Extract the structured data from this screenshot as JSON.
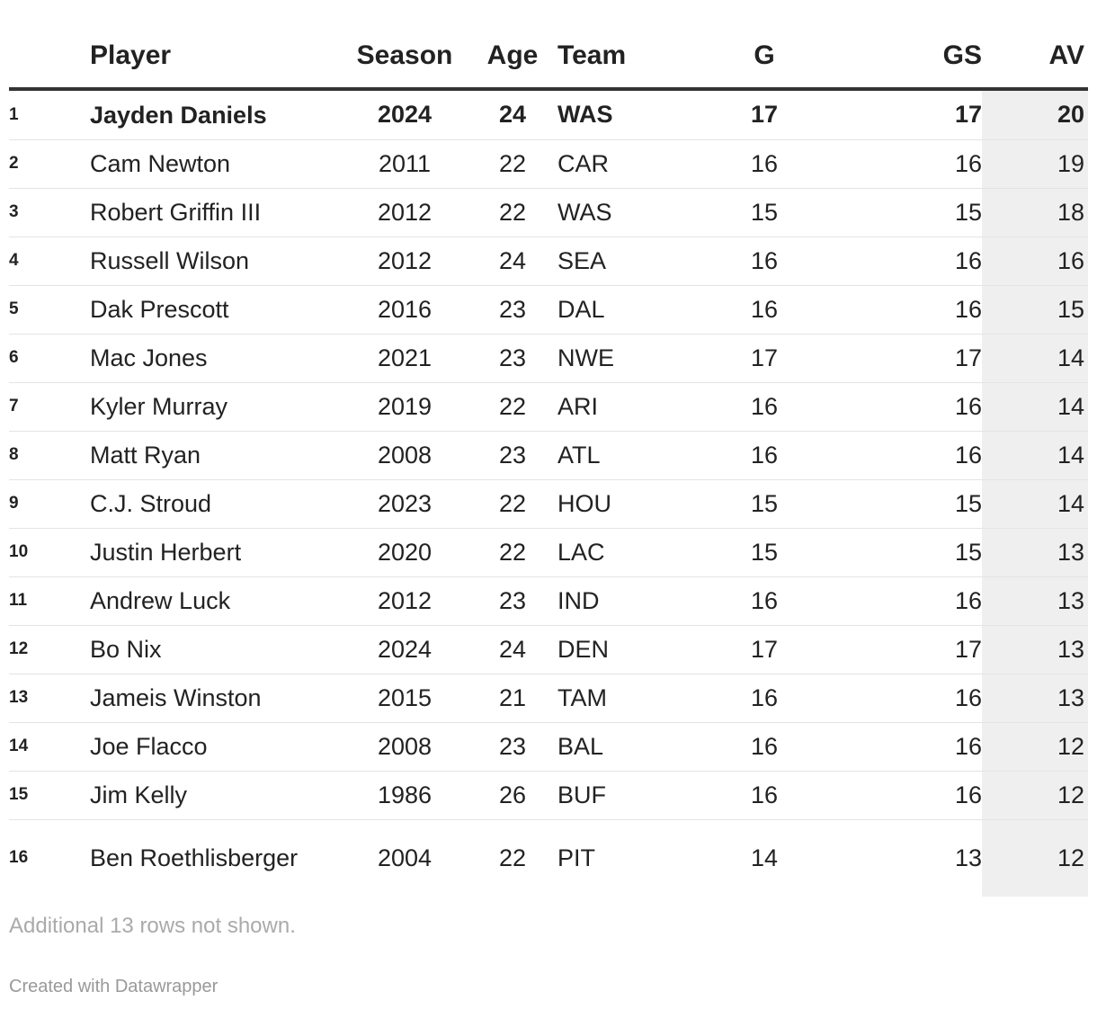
{
  "chart_data": {
    "type": "table",
    "columns": [
      "",
      "Player",
      "Season",
      "Age",
      "Team",
      "G",
      "GS",
      "AV"
    ],
    "rows": [
      [
        "1",
        "Jayden Daniels",
        "2024",
        "24",
        "WAS",
        "17",
        "17",
        "20"
      ],
      [
        "2",
        "Cam Newton",
        "2011",
        "22",
        "CAR",
        "16",
        "16",
        "19"
      ],
      [
        "3",
        "Robert Griffin III",
        "2012",
        "22",
        "WAS",
        "15",
        "15",
        "18"
      ],
      [
        "4",
        "Russell Wilson",
        "2012",
        "24",
        "SEA",
        "16",
        "16",
        "16"
      ],
      [
        "5",
        "Dak Prescott",
        "2016",
        "23",
        "DAL",
        "16",
        "16",
        "15"
      ],
      [
        "6",
        "Mac Jones",
        "2021",
        "23",
        "NWE",
        "17",
        "17",
        "14"
      ],
      [
        "7",
        "Kyler Murray",
        "2019",
        "22",
        "ARI",
        "16",
        "16",
        "14"
      ],
      [
        "8",
        "Matt Ryan",
        "2008",
        "23",
        "ATL",
        "16",
        "16",
        "14"
      ],
      [
        "9",
        "C.J. Stroud",
        "2023",
        "22",
        "HOU",
        "15",
        "15",
        "14"
      ],
      [
        "10",
        "Justin Herbert",
        "2020",
        "22",
        "LAC",
        "15",
        "15",
        "13"
      ],
      [
        "11",
        "Andrew Luck",
        "2012",
        "23",
        "IND",
        "16",
        "16",
        "13"
      ],
      [
        "12",
        "Bo Nix",
        "2024",
        "24",
        "DEN",
        "17",
        "17",
        "13"
      ],
      [
        "13",
        "Jameis Winston",
        "2015",
        "21",
        "TAM",
        "16",
        "16",
        "13"
      ],
      [
        "14",
        "Joe Flacco",
        "2008",
        "23",
        "BAL",
        "16",
        "16",
        "12"
      ],
      [
        "15",
        "Jim Kelly",
        "1986",
        "26",
        "BUF",
        "16",
        "16",
        "12"
      ],
      [
        "16",
        "Ben Roethlisberger",
        "2004",
        "22",
        "PIT",
        "14",
        "13",
        "12"
      ]
    ],
    "highlight_row": 0,
    "highlight_column": "AV",
    "highlight_column_color": "#efefef"
  },
  "footer": {
    "note": "Additional 13 rows not shown.",
    "credit": "Created with Datawrapper"
  }
}
